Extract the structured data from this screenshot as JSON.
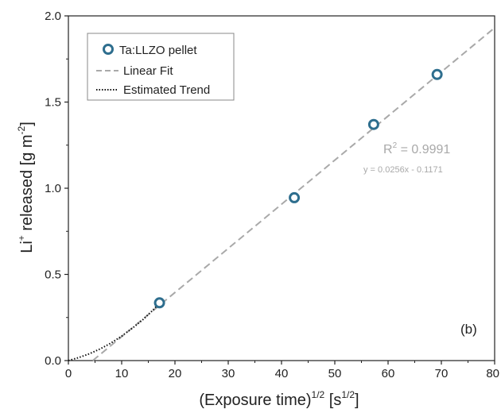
{
  "chart_data": {
    "type": "scatter",
    "xlabel_base": "(Exposure time)",
    "xlabel_sup": "1/2",
    "xlabel_unit": " [s",
    "xlabel_unit_sup": "1/2",
    "xlabel_close": "]",
    "ylabel_pre": "Li",
    "ylabel_pre_sup": "+",
    "ylabel_mid": " released [g m",
    "ylabel_mid_sup": "-2",
    "ylabel_close": "]",
    "xlim": [
      0,
      80
    ],
    "ylim": [
      0,
      2.0
    ],
    "x_ticks": [
      0,
      10,
      20,
      30,
      40,
      50,
      60,
      70,
      80
    ],
    "x_tick_labels": [
      "0",
      "10",
      "20",
      "30",
      "40",
      "50",
      "60",
      "70",
      "80"
    ],
    "y_ticks": [
      0,
      0.5,
      1.0,
      1.5,
      2.0
    ],
    "y_tick_labels": [
      "0.0",
      "0.5",
      "1.0",
      "1.5",
      "2.0"
    ],
    "grid": false,
    "legend_position": "top-left",
    "series": [
      {
        "name": "Ta:LLZO pellet",
        "kind": "markers",
        "color": "#2e6e8e",
        "x": [
          17.1,
          42.4,
          57.3,
          69.2
        ],
        "y": [
          0.335,
          0.945,
          1.37,
          1.66
        ]
      },
      {
        "name": "Linear Fit",
        "kind": "dashed-line",
        "color": "#a9a9a9",
        "x": [
          4.574,
          80
        ],
        "y": [
          0,
          1.931
        ]
      },
      {
        "name": "Estimated Trend",
        "kind": "dotted-line",
        "color": "#111111",
        "x": [
          0,
          2,
          4,
          6,
          8,
          10,
          12,
          14,
          16,
          17.1
        ],
        "y": [
          0,
          0.018,
          0.04,
          0.068,
          0.102,
          0.142,
          0.188,
          0.238,
          0.297,
          0.335
        ]
      }
    ],
    "annotations": {
      "r2_prefix": "R",
      "r2_sup": "2",
      "r2_value": " = 0.9991",
      "equation": "y = 0.0256x - 0.1171",
      "panel_label": "(b)"
    }
  }
}
